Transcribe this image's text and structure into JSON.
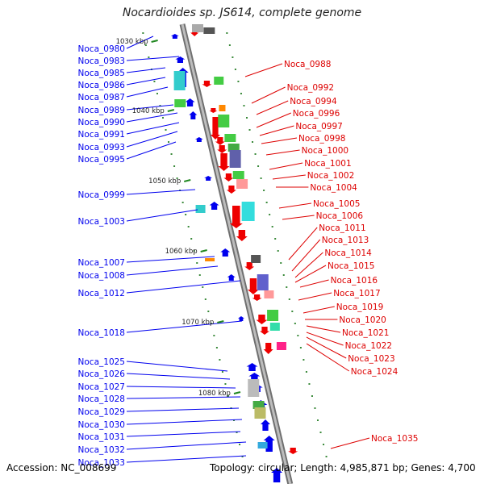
{
  "title": "Nocardioides sp. JS614, complete genome",
  "accession": "Accession: NC_008699",
  "topology": "Topology: circular; Length: 4,985,871 bp; Genes: 4,700",
  "colors": {
    "reverse_label": "#0000ee",
    "forward_label": "#dd0000",
    "reverse_gene": "#0000ee",
    "forward_gene": "#ee0000",
    "backbone": "#a0a0a0",
    "tick": "#228822"
  },
  "kbp_ticks": [
    "1030 kbp",
    "1040 kbp",
    "1050 kbp",
    "1060 kbp",
    "1070 kbp",
    "1080 kbp"
  ],
  "left_labels": [
    "Noca_0980",
    "Noca_0983",
    "Noca_0985",
    "Noca_0986",
    "Noca_0987",
    "Noca_0989",
    "Noca_0990",
    "Noca_0991",
    "Noca_0993",
    "Noca_0995",
    "Noca_0999",
    "Noca_1003",
    "Noca_1007",
    "Noca_1008",
    "Noca_1012",
    "Noca_1018",
    "Noca_1025",
    "Noca_1026",
    "Noca_1027",
    "Noca_1028",
    "Noca_1029",
    "Noca_1030",
    "Noca_1031",
    "Noca_1032",
    "Noca_1033"
  ],
  "right_labels": [
    "Noca_0988",
    "Noca_0992",
    "Noca_0994",
    "Noca_0996",
    "Noca_0997",
    "Noca_0998",
    "Noca_1000",
    "Noca_1001",
    "Noca_1002",
    "Noca_1004",
    "Noca_1005",
    "Noca_1006",
    "Noca_1011",
    "Noca_1013",
    "Noca_1014",
    "Noca_1015",
    "Noca_1016",
    "Noca_1017",
    "Noca_1019",
    "Noca_1020",
    "Noca_1021",
    "Noca_1022",
    "Noca_1023",
    "Noca_1024",
    "Noca_1035"
  ]
}
